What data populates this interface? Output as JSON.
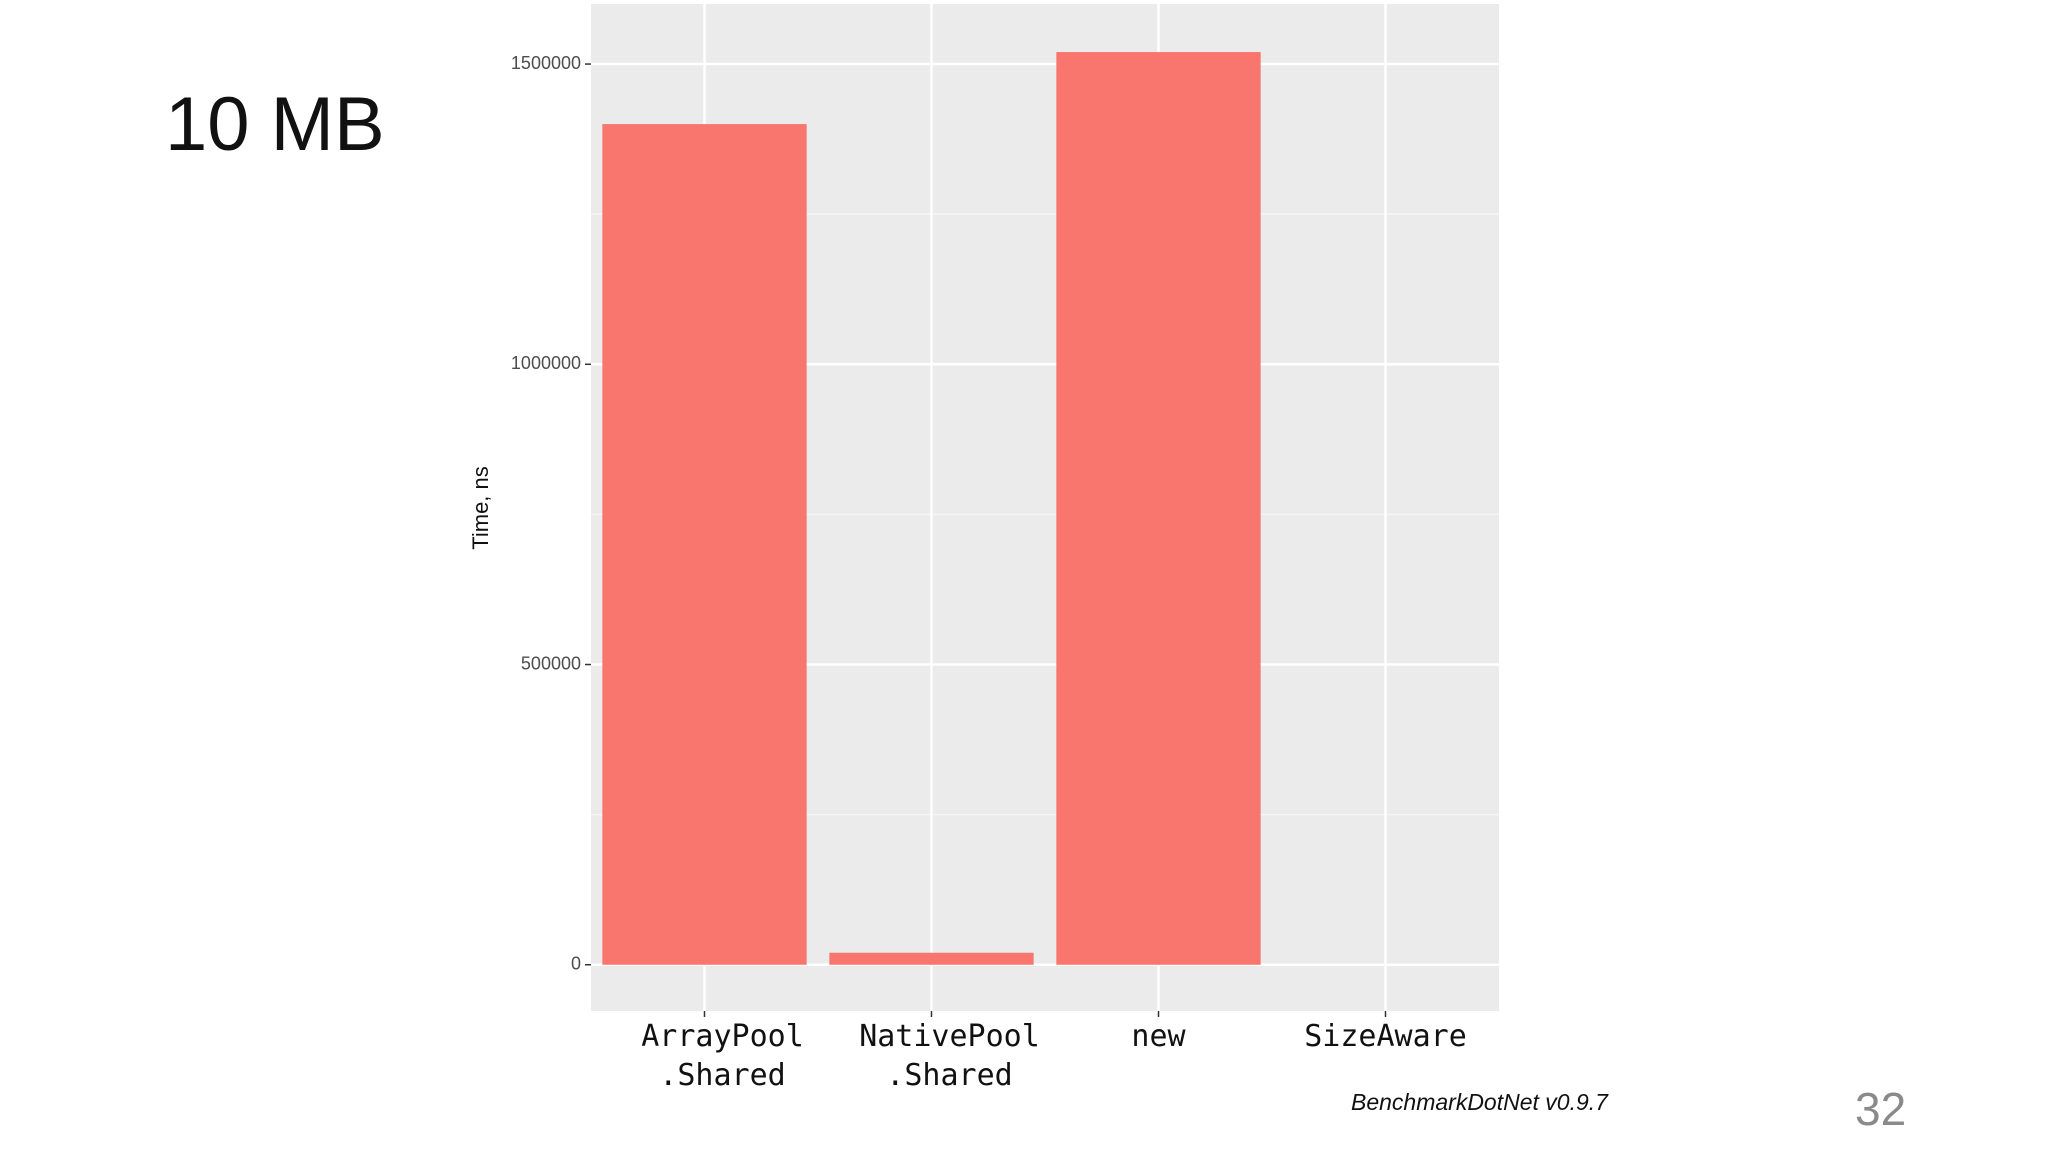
{
  "chart_data": {
    "type": "bar",
    "title": "10 MB",
    "y_label": "Time, ns",
    "categories": [
      "ArrayPool\n.Shared",
      "NativePool\n.Shared",
      "new",
      "SizeAware"
    ],
    "values": [
      1400000,
      20000,
      1520000,
      0
    ],
    "color": "#f8766d",
    "ylim": [
      -77000,
      1600000
    ],
    "yticks": [
      0,
      500000,
      1000000,
      1500000
    ],
    "grid": true,
    "footer": "BenchmarkDotNet v0.9.7",
    "page_number": "32"
  }
}
